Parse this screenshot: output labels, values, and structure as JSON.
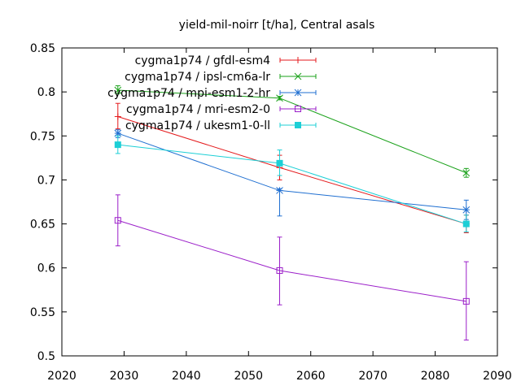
{
  "chart_data": {
    "type": "line",
    "title": "yield-mil-noirr [t/ha], Central asals",
    "xlabel": "",
    "ylabel": "",
    "xlim": [
      2020,
      2090
    ],
    "ylim": [
      0.5,
      0.85
    ],
    "xticks": [
      2020,
      2030,
      2040,
      2050,
      2060,
      2070,
      2080,
      2090
    ],
    "yticks": [
      0.5,
      0.55,
      0.6,
      0.65,
      0.7,
      0.75,
      0.8,
      0.85
    ],
    "ytick_labels": [
      "0.5",
      "0.55",
      "0.6",
      "0.65",
      "0.7",
      "0.75",
      "0.8",
      "0.85"
    ],
    "grid": false,
    "legend_position": "top-right",
    "x": [
      2029,
      2055,
      2085
    ],
    "series": [
      {
        "name": "cygma1p74 / gfdl-esm4",
        "color": "#e41a1c",
        "marker": "plus",
        "values": [
          0.772,
          0.714,
          0.65
        ],
        "err_low": [
          0.758,
          0.7,
          0.64
        ],
        "err_high": [
          0.787,
          0.728,
          0.66
        ]
      },
      {
        "name": "cygma1p74 / ipsl-cm6a-lr",
        "color": "#1aa11a",
        "marker": "cross",
        "values": [
          0.802,
          0.793,
          0.708
        ],
        "err_low": [
          0.798,
          0.791,
          0.703
        ],
        "err_high": [
          0.807,
          0.795,
          0.713
        ]
      },
      {
        "name": "cygma1p74 / mpi-esm1-2-hr",
        "color": "#1f6fd1",
        "marker": "star",
        "values": [
          0.753,
          0.688,
          0.666
        ],
        "err_low": [
          0.748,
          0.659,
          0.655
        ],
        "err_high": [
          0.757,
          0.69,
          0.677
        ]
      },
      {
        "name": "cygma1p74 / mri-esm2-0",
        "color": "#9b1fc9",
        "marker": "square",
        "values": [
          0.654,
          0.597,
          0.562
        ],
        "err_low": [
          0.625,
          0.558,
          0.518
        ],
        "err_high": [
          0.683,
          0.635,
          0.607
        ]
      },
      {
        "name": "cygma1p74 / ukesm1-0-ll",
        "color": "#1ccfd6",
        "marker": "filled-square",
        "values": [
          0.74,
          0.719,
          0.65
        ],
        "err_low": [
          0.73,
          0.705,
          0.641
        ],
        "err_high": [
          0.75,
          0.734,
          0.66
        ]
      }
    ]
  }
}
